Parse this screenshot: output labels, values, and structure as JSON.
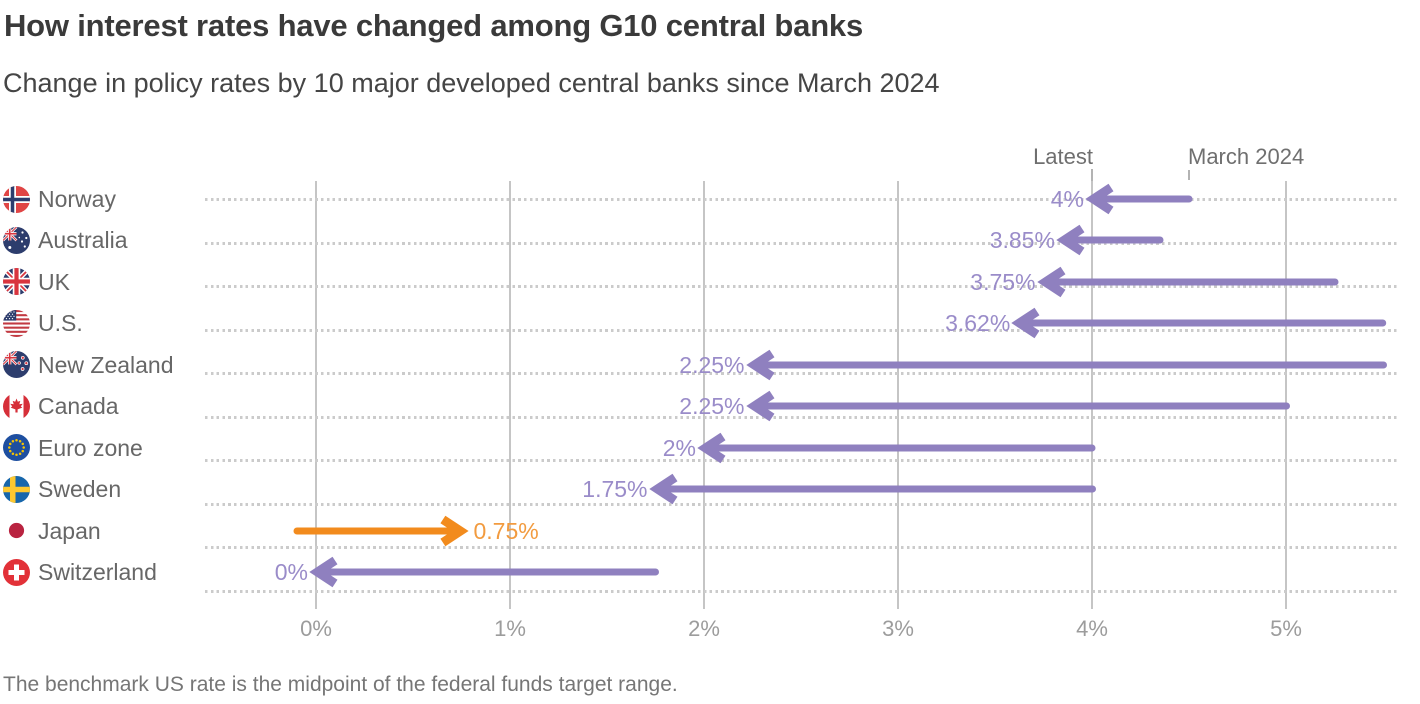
{
  "header": {
    "title": "How interest rates have changed among G10 central banks",
    "subtitle": "Change in policy rates by 10 major developed central banks since March 2024"
  },
  "footer": {
    "note": "The benchmark US rate is the midpoint of the federal funds target range."
  },
  "colors": {
    "purple_arrow": "#8f80bf",
    "purple_text": "#9a8cc9",
    "orange_arrow": "#f28b1d",
    "orange_text": "#f29b3f",
    "gridline": "#c5c5c5",
    "dotted_guide": "#cbcbcb",
    "title_text": "#3a3a3a",
    "axis_text": "#9c9c9c"
  },
  "chart_data": {
    "type": "dumbbell-arrow",
    "title": "How interest rates have changed among G10 central banks",
    "subtitle": "Change in policy rates by 10 major developed central banks since March 2024",
    "unit": "%",
    "x_axis": {
      "tick_labels": [
        "0%",
        "1%",
        "2%",
        "3%",
        "4%",
        "5%"
      ],
      "tick_values": [
        0,
        1,
        2,
        3,
        4,
        5
      ],
      "range_plotted": [
        -0.6,
        5.6
      ],
      "grid": true
    },
    "annotations": {
      "latest": {
        "label": "Latest",
        "anchor_value": 4.0
      },
      "march": {
        "label": "March 2024",
        "anchor_value": 4.5
      }
    },
    "series": [
      {
        "country": "Norway",
        "flag_icon": "norway-flag-icon",
        "latest": 4.0,
        "latest_label": "4%",
        "march_2024": 4.5,
        "direction": "down",
        "color": "purple"
      },
      {
        "country": "Australia",
        "flag_icon": "australia-flag-icon",
        "latest": 3.85,
        "latest_label": "3.85%",
        "march_2024": 4.35,
        "direction": "down",
        "color": "purple"
      },
      {
        "country": "UK",
        "flag_icon": "uk-flag-icon",
        "latest": 3.75,
        "latest_label": "3.75%",
        "march_2024": 5.25,
        "direction": "down",
        "color": "purple"
      },
      {
        "country": "U.S.",
        "flag_icon": "us-flag-icon",
        "latest": 3.62,
        "latest_label": "3.62%",
        "march_2024": 5.5,
        "direction": "down",
        "color": "purple"
      },
      {
        "country": "New Zealand",
        "flag_icon": "new-zealand-flag-icon",
        "latest": 2.25,
        "latest_label": "2.25%",
        "march_2024": 5.5,
        "direction": "down",
        "color": "purple"
      },
      {
        "country": "Canada",
        "flag_icon": "canada-flag-icon",
        "latest": 2.25,
        "latest_label": "2.25%",
        "march_2024": 5.0,
        "direction": "down",
        "color": "purple"
      },
      {
        "country": "Euro zone",
        "flag_icon": "euro-zone-flag-icon",
        "latest": 2.0,
        "latest_label": "2%",
        "march_2024": 4.0,
        "direction": "down",
        "color": "purple"
      },
      {
        "country": "Sweden",
        "flag_icon": "sweden-flag-icon",
        "latest": 1.75,
        "latest_label": "1.75%",
        "march_2024": 4.0,
        "direction": "down",
        "color": "purple"
      },
      {
        "country": "Japan",
        "flag_icon": "japan-flag-icon",
        "latest": 0.75,
        "latest_label": "0.75%",
        "march_2024": -0.1,
        "direction": "up",
        "color": "orange"
      },
      {
        "country": "Switzerland",
        "flag_icon": "switzerland-flag-icon",
        "latest": 0.0,
        "latest_label": "0%",
        "march_2024": 1.75,
        "direction": "down",
        "color": "purple"
      }
    ]
  }
}
